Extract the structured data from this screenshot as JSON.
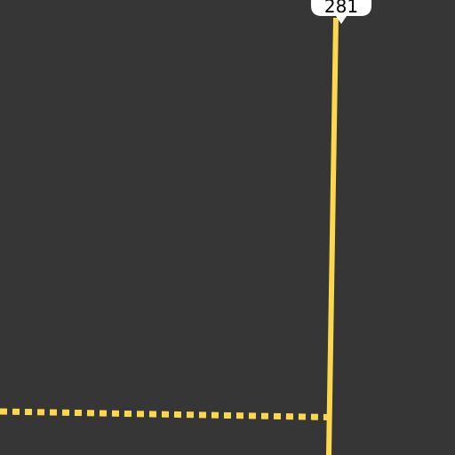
{
  "map": {
    "background_color": "#363636",
    "road_color": "#fdd84e",
    "shield_color": "#ffffff",
    "shield_text_color": "#000000"
  },
  "roads": [
    {
      "name": "highway-281",
      "style": "solid"
    },
    {
      "name": "dashed-road",
      "style": "dashed"
    }
  ],
  "shields": [
    {
      "route": "281"
    }
  ]
}
